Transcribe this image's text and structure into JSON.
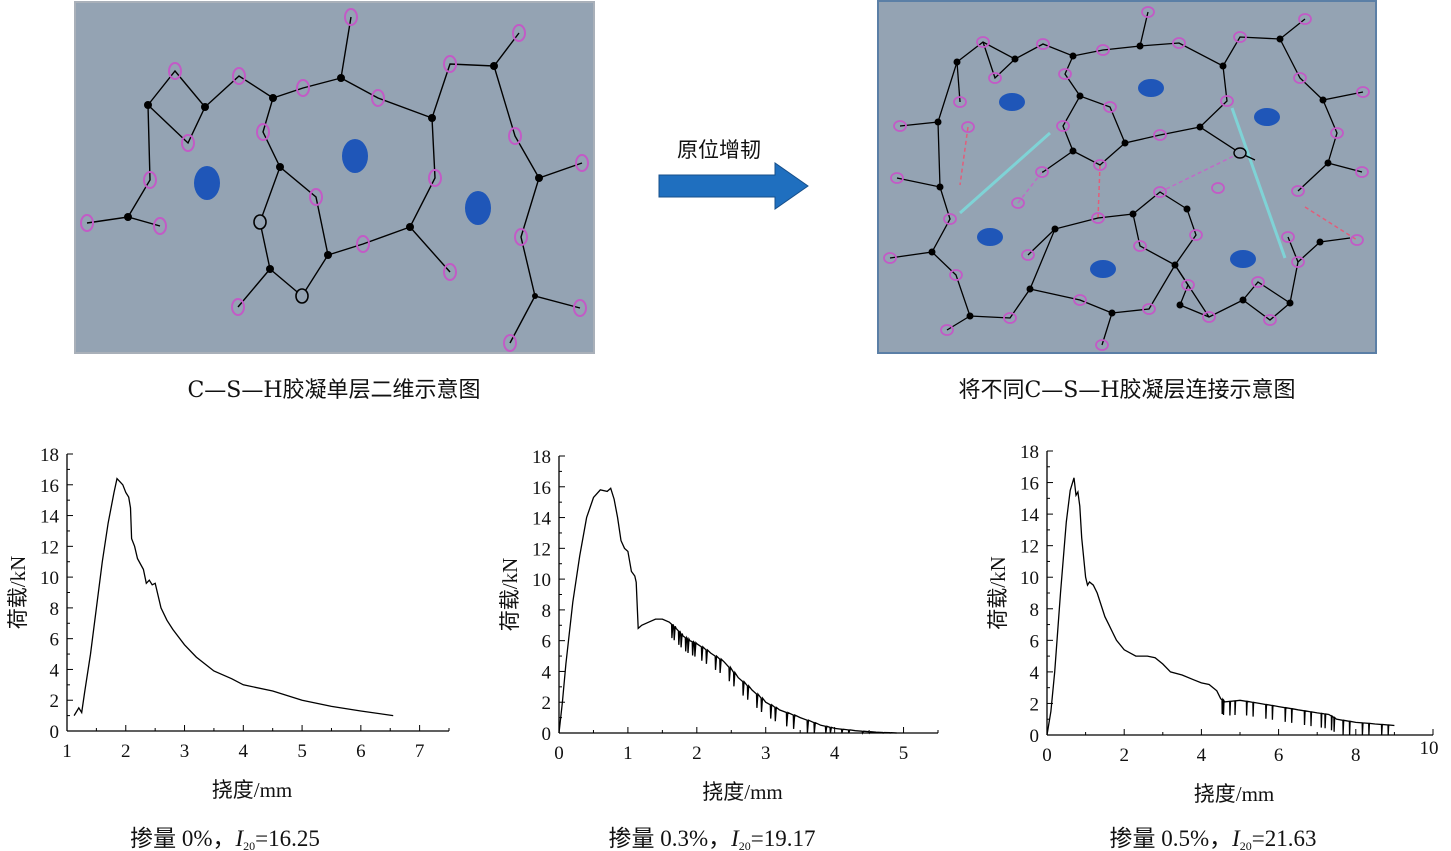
{
  "figure": {
    "arrow_label": "原位增韧",
    "left_caption": "C—S—H胶凝单层二维示意图",
    "right_caption": "将不同C—S—H胶凝层连接示意图",
    "colors": {
      "panel_bg": "#94a3b3",
      "panel_border_left": "#a9b0b9",
      "panel_border_right": "#5b7fa6",
      "open_node": "#c25bc6",
      "solid_node": "#000000",
      "blue_pore": "#1f56b8",
      "arrow_fill": "#1f6fbf",
      "cyan_link": "#7fd3d6",
      "pink_dashed": "#e25d7a",
      "violet_dashed": "#c06ac8"
    }
  },
  "chart_data": [
    {
      "type": "line",
      "title": "",
      "xlabel": "挠度/mm",
      "ylabel": "荷载/kN",
      "xlim": [
        1,
        7.5
      ],
      "ylim": [
        0,
        18
      ],
      "xticks": [
        "1",
        "2",
        "3",
        "4",
        "5",
        "6",
        "7"
      ],
      "yticks": [
        "0",
        "2",
        "4",
        "6",
        "8",
        "10",
        "12",
        "14",
        "16",
        "18"
      ],
      "caption_prefix": "掺量 0%，",
      "caption_var": "I",
      "caption_sub": "20",
      "caption_value": "=16.25",
      "series": [
        {
          "x": [
            1.12,
            1.2,
            1.25,
            1.3,
            1.4,
            1.5,
            1.6,
            1.7,
            1.8,
            1.85,
            1.9,
            1.95,
            2.0,
            2.05,
            2.08,
            2.1,
            2.15,
            2.2,
            2.3,
            2.35,
            2.4,
            2.45,
            2.5,
            2.55,
            2.6,
            2.7,
            2.8,
            3.0,
            3.2,
            3.5,
            3.8,
            4.0,
            4.5,
            5.0,
            5.5,
            6.0,
            6.55
          ],
          "y": [
            1.0,
            1.5,
            1.2,
            2.5,
            5.0,
            8.0,
            11.0,
            13.5,
            15.5,
            16.4,
            16.2,
            16.0,
            15.5,
            15.2,
            14.5,
            12.5,
            12.0,
            11.2,
            10.5,
            9.6,
            9.8,
            9.5,
            9.6,
            8.8,
            8.0,
            7.2,
            6.6,
            5.6,
            4.8,
            3.9,
            3.4,
            3.0,
            2.6,
            2.0,
            1.6,
            1.3,
            1.0
          ],
          "jagged": false
        }
      ]
    },
    {
      "type": "line",
      "title": "",
      "xlabel": "挠度/mm",
      "ylabel": "荷载/kN",
      "xlim": [
        0,
        5.5
      ],
      "ylim": [
        0,
        18
      ],
      "xticks": [
        "0",
        "1",
        "2",
        "3",
        "4",
        "5"
      ],
      "yticks": [
        "0",
        "2",
        "4",
        "6",
        "8",
        "10",
        "12",
        "14",
        "16",
        "18"
      ],
      "caption_prefix": "掺量 0.3%，",
      "caption_var": "I",
      "caption_sub": "20",
      "caption_value": "=19.17",
      "series": [
        {
          "x": [
            0,
            0.05,
            0.1,
            0.2,
            0.3,
            0.4,
            0.5,
            0.6,
            0.7,
            0.75,
            0.8,
            0.85,
            0.9,
            0.95,
            1.0,
            1.05,
            1.1,
            1.12,
            1.15,
            1.2,
            1.3,
            1.4,
            1.5,
            1.6,
            1.7,
            1.8,
            1.9,
            2.0,
            2.2,
            2.4,
            2.6,
            2.8,
            3.0,
            3.2,
            3.5,
            3.8,
            4.0,
            4.3,
            4.6,
            4.9
          ],
          "y": [
            0,
            2.0,
            4.5,
            8.5,
            11.5,
            14.0,
            15.3,
            15.8,
            15.7,
            15.9,
            15.2,
            14.0,
            12.5,
            12.0,
            11.8,
            10.5,
            10.2,
            9.8,
            6.8,
            7.0,
            7.2,
            7.4,
            7.4,
            7.2,
            6.8,
            6.3,
            6.0,
            5.8,
            5.2,
            4.6,
            3.6,
            2.8,
            2.0,
            1.5,
            1.0,
            0.5,
            0.3,
            0.15,
            0.05,
            0.0
          ],
          "jagged": true
        }
      ]
    },
    {
      "type": "line",
      "title": "",
      "xlabel": "挠度/mm",
      "ylabel": "荷载/kN",
      "xlim": [
        0,
        10
      ],
      "ylim": [
        0,
        18
      ],
      "xticks": [
        "0",
        "2",
        "4",
        "6",
        "8",
        "10"
      ],
      "yticks": [
        "0",
        "2",
        "4",
        "6",
        "8",
        "10",
        "12",
        "14",
        "16",
        "18"
      ],
      "caption_prefix": "掺量 0.5%，",
      "caption_var": "I",
      "caption_sub": "20",
      "caption_value": "=21.63",
      "series": [
        {
          "x": [
            0,
            0.1,
            0.2,
            0.35,
            0.5,
            0.6,
            0.7,
            0.75,
            0.8,
            0.85,
            0.9,
            1.0,
            1.05,
            1.1,
            1.2,
            1.3,
            1.5,
            1.6,
            1.7,
            1.8,
            2.0,
            2.3,
            2.6,
            2.8,
            3.0,
            3.2,
            3.5,
            3.8,
            4.0,
            4.2,
            4.4,
            4.5,
            4.6,
            5.0,
            5.5,
            6.0,
            6.5,
            7.0,
            7.3,
            7.5,
            8.0,
            8.5,
            9.0
          ],
          "y": [
            0,
            1.5,
            4.0,
            9.0,
            13.5,
            15.5,
            16.3,
            15.2,
            15.4,
            14.5,
            12.5,
            10.0,
            9.5,
            9.7,
            9.5,
            9.0,
            7.5,
            7.0,
            6.5,
            6.0,
            5.4,
            5.0,
            5.0,
            4.9,
            4.5,
            4.0,
            3.8,
            3.5,
            3.3,
            3.2,
            2.8,
            2.3,
            2.1,
            2.2,
            2.0,
            1.8,
            1.6,
            1.4,
            1.3,
            1.0,
            0.8,
            0.7,
            0.6
          ],
          "jagged": true
        }
      ]
    }
  ]
}
